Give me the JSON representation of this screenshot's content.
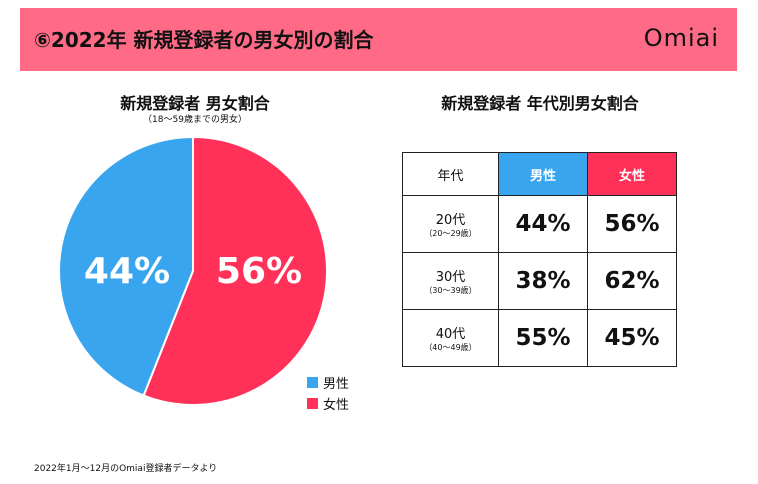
{
  "header": {
    "title": "⑥2022年  新規登録者の男女別の割合",
    "logo": "Omiai"
  },
  "colors": {
    "header": "#ff6b86",
    "male": "#3aa5ef",
    "female": "#ff3158"
  },
  "chart_data": [
    {
      "type": "pie",
      "title": "新規登録者 男女割合",
      "subtitle": "（18～59歳までの男女）",
      "slices": [
        {
          "name": "男性",
          "value": 44,
          "label": "44%"
        },
        {
          "name": "女性",
          "value": 56,
          "label": "56%"
        }
      ],
      "legend": "bottom-right"
    },
    {
      "type": "table",
      "title": "新規登録者 年代別男女割合",
      "columns": [
        "年代",
        "男性",
        "女性"
      ],
      "rows": [
        {
          "age": "20代",
          "range": "（20～29歳）",
          "male": "44%",
          "female": "56%"
        },
        {
          "age": "30代",
          "range": "（30～39歳）",
          "male": "38%",
          "female": "62%"
        },
        {
          "age": "40代",
          "range": "（40～49歳）",
          "male": "55%",
          "female": "45%"
        }
      ]
    }
  ],
  "footer": "2022年1月～12月のOmiai登録者データより"
}
